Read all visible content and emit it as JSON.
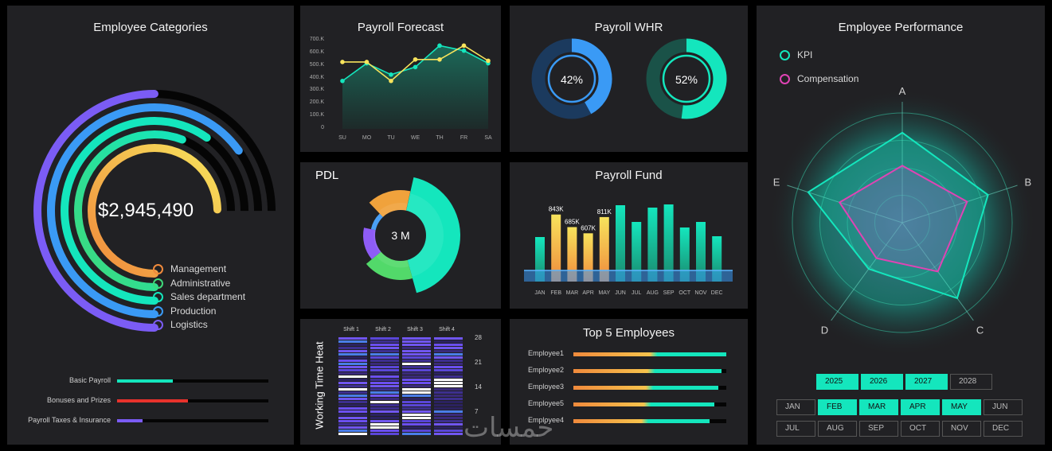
{
  "colors": {
    "bg": "#000000",
    "panel": "#212124",
    "teal": "#14e6bd",
    "purple": "#7b5cf5",
    "orange": "#f08a3c",
    "yellow": "#f7e35c",
    "blue": "#3a9af5",
    "green": "#3fd97a"
  },
  "categories": {
    "title": "Employee Categories",
    "total": "$2,945,490",
    "legend": [
      {
        "label": "Management",
        "color": "#f08a3c"
      },
      {
        "label": "Administrative",
        "color": "#3fd97a"
      },
      {
        "label": "Sales department",
        "color": "#14e6bd"
      },
      {
        "label": "Production",
        "color": "#3a9af5"
      },
      {
        "label": "Logistics",
        "color": "#7b5cf5"
      }
    ],
    "bars": [
      {
        "label": "Basic Payroll",
        "value": 0.37,
        "color": "#14e6bd"
      },
      {
        "label": "Bonuses and Prizes",
        "value": 0.47,
        "color": "#e8322c"
      },
      {
        "label": "Payroll Taxes & Insurance",
        "value": 0.17,
        "color": "#7b5cf5"
      }
    ]
  },
  "forecast": {
    "title": "Payroll Forecast"
  },
  "whr": {
    "title": "Payroll WHR",
    "left_pct": "42%",
    "right_pct": "52%",
    "left_value": 0.42,
    "right_value": 0.52
  },
  "pdl": {
    "title": "PDL",
    "center": "3 M"
  },
  "fund": {
    "title": "Payroll Fund"
  },
  "heat": {
    "title": "Working Time Heat",
    "shifts": [
      "Shift 1",
      "Shift 2",
      "Shift 3",
      "Shift 4"
    ],
    "yticks": [
      "28",
      "21",
      "14",
      "7"
    ]
  },
  "top5": {
    "title": "Top 5 Employees",
    "items": [
      {
        "label": "Employee1",
        "value": 1.0
      },
      {
        "label": "Employee2",
        "value": 0.97
      },
      {
        "label": "Employee3",
        "value": 0.95
      },
      {
        "label": "Employee5",
        "value": 0.92
      },
      {
        "label": "Employee4",
        "value": 0.89
      }
    ]
  },
  "perf": {
    "title": "Employee Performance",
    "legend": [
      {
        "label": "KPI",
        "color": "#14e6bd"
      },
      {
        "label": "Compensation",
        "color": "#e043b5"
      }
    ],
    "axes": [
      "A",
      "B",
      "C",
      "D",
      "E"
    ],
    "years": [
      {
        "label": "2025",
        "selected": true
      },
      {
        "label": "2026",
        "selected": true
      },
      {
        "label": "2027",
        "selected": true
      },
      {
        "label": "2028",
        "selected": false
      }
    ],
    "months": [
      {
        "label": "JAN",
        "selected": false
      },
      {
        "label": "FEB",
        "selected": true
      },
      {
        "label": "MAR",
        "selected": true
      },
      {
        "label": "APR",
        "selected": true
      },
      {
        "label": "MAY",
        "selected": true
      },
      {
        "label": "JUN",
        "selected": false
      },
      {
        "label": "JUL",
        "selected": false
      },
      {
        "label": "AUG",
        "selected": false
      },
      {
        "label": "SEP",
        "selected": false
      },
      {
        "label": "OCT",
        "selected": false
      },
      {
        "label": "NOV",
        "selected": false
      },
      {
        "label": "DEC",
        "selected": false
      }
    ]
  },
  "watermark": "خمسات",
  "chart_data": [
    {
      "type": "line",
      "title": "Payroll Forecast",
      "categories": [
        "SU",
        "MO",
        "TU",
        "WE",
        "TH",
        "FR",
        "SA"
      ],
      "yticks": [
        "700.K",
        "600.K",
        "500.K",
        "400.K",
        "300.K",
        "200.K",
        "100.K",
        "0"
      ],
      "ylim": [
        0,
        700000
      ],
      "series": [
        {
          "values": [
            380000,
            520000,
            430000,
            490000,
            660000,
            620000,
            520000
          ],
          "color": "#14e6bd"
        },
        {
          "values": [
            530000,
            530000,
            380000,
            550000,
            550000,
            660000,
            540000
          ],
          "color": "#f7e35c"
        }
      ]
    },
    {
      "type": "bar",
      "title": "Payroll Fund",
      "categories": [
        "JAN",
        "FEB",
        "MAR",
        "APR",
        "MAY",
        "JUN",
        "JUL",
        "AUG",
        "SEP",
        "OCT",
        "NOV",
        "DEC"
      ],
      "values": [
        560000,
        843000,
        685000,
        607000,
        811000,
        960000,
        750000,
        930000,
        970000,
        680000,
        750000,
        570000
      ],
      "labels": [
        "",
        "843K",
        "685K",
        "607K",
        "811K",
        "",
        "",
        "",
        "",
        "",
        "",
        ""
      ],
      "highlight": [
        false,
        true,
        true,
        true,
        true,
        false,
        false,
        false,
        false,
        false,
        false,
        false
      ]
    },
    {
      "type": "pie",
      "title": "PDL",
      "values": [
        2.0,
        0.8,
        1.0,
        0.6,
        0.9
      ],
      "colors": [
        "#14e6bd",
        "#52d96a",
        "#8e5cf6",
        "#4aa0f5",
        "#f0a23c"
      ]
    },
    {
      "type": "radar",
      "title": "Employee Performance",
      "axes": [
        "A",
        "B",
        "C",
        "D",
        "E"
      ],
      "series": [
        {
          "name": "KPI",
          "values": [
            0.82,
            0.82,
            0.85,
            0.52,
            0.9
          ]
        },
        {
          "name": "Compensation",
          "values": [
            0.52,
            0.62,
            0.55,
            0.4,
            0.6
          ]
        }
      ]
    }
  ]
}
